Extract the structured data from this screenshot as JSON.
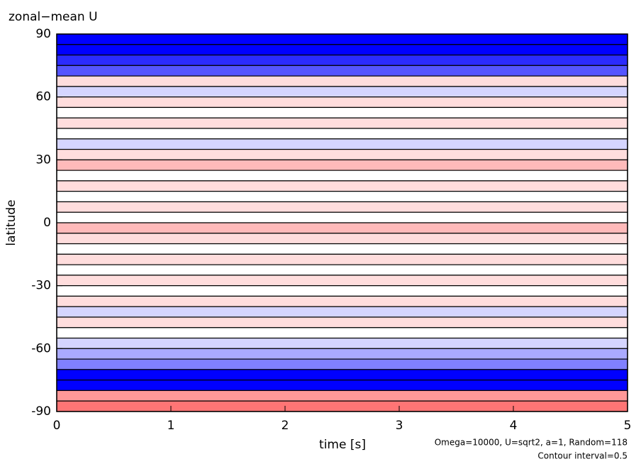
{
  "chart_data": {
    "type": "contour",
    "title": "zonal−mean U",
    "xlabel": "time [s]",
    "ylabel": "latitude",
    "annotations": [
      "Omega=10000, U=sqrt2, a=1, Random=118",
      "Contour interval=0.5"
    ],
    "lat": [
      87.5,
      82.5,
      77.5,
      72.5,
      67.5,
      62.5,
      57.5,
      52.5,
      47.5,
      42.5,
      37.5,
      32.5,
      27.5,
      22.5,
      17.5,
      12.5,
      7.5,
      2.5,
      -2.5,
      -7.5,
      -12.5,
      -17.5,
      -22.5,
      -27.5,
      -32.5,
      -37.5,
      -42.5,
      -47.5,
      -52.5,
      -57.5,
      -62.5,
      -67.5,
      -72.5,
      -77.5,
      -82.5,
      -87.5
    ],
    "values": [
      -3,
      -3,
      -2.5,
      -2,
      0.5,
      -0.5,
      0.5,
      0,
      0.5,
      0,
      -0.5,
      0.5,
      1,
      0,
      0.5,
      0,
      0.5,
      0,
      1,
      0.5,
      0,
      0.5,
      0,
      0.5,
      0,
      0.5,
      -0.5,
      0.5,
      0,
      -0.5,
      -1,
      -1.5,
      -3,
      -3,
      1.5,
      2
    ],
    "band_height": 5,
    "clim": [
      -3,
      3
    ],
    "negative_color": "#0000ff",
    "positive_color": "#ff3030",
    "xlim": [
      0,
      5
    ],
    "xticks": [
      0,
      1,
      2,
      3,
      4,
      5
    ],
    "ylim": [
      -90,
      90
    ],
    "yticks": [
      90,
      60,
      30,
      0,
      -30,
      -60,
      -90
    ]
  }
}
